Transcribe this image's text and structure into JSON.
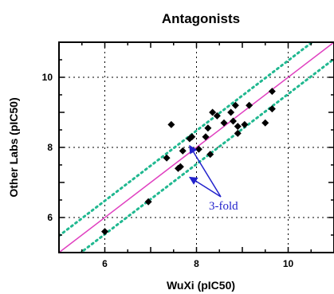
{
  "chart_data": {
    "type": "scatter",
    "title": "Antagonists",
    "xlabel": "WuXi (pIC50)",
    "ylabel": "Other Labs (pIC50)",
    "xlim": [
      5,
      11
    ],
    "ylim": [
      5,
      11
    ],
    "xticks": [
      6,
      8,
      10
    ],
    "yticks": [
      6,
      8,
      10
    ],
    "grid": true,
    "colors": {
      "points": "#000000",
      "identity_line": "#e040c0",
      "fold_lines": "#20b890",
      "annotation": "#2222cc"
    },
    "series": [
      {
        "x": [
          6.0,
          6.95,
          7.35,
          7.45,
          7.6,
          7.65,
          7.7,
          7.85,
          7.9,
          8.05,
          8.2,
          8.25,
          8.3,
          8.35,
          8.45,
          8.6,
          8.75,
          8.8,
          8.85,
          8.9,
          8.9,
          9.05,
          9.15,
          9.5,
          9.65,
          9.65
        ],
        "y": [
          5.6,
          6.45,
          7.7,
          8.65,
          7.4,
          7.45,
          7.9,
          8.25,
          8.3,
          7.95,
          8.3,
          8.55,
          7.8,
          9.0,
          8.9,
          8.7,
          9.0,
          8.75,
          9.2,
          8.4,
          8.6,
          8.65,
          9.2,
          8.7,
          9.6,
          9.1
        ]
      }
    ],
    "lines": [
      {
        "kind": "identity",
        "offset": 0
      },
      {
        "kind": "fold",
        "offset": 0.477
      },
      {
        "kind": "fold",
        "offset": -0.477
      }
    ],
    "annotation": {
      "text": "3-fold",
      "targets": [
        [
          7.85,
          8.05
        ],
        [
          7.85,
          7.15
        ]
      ]
    }
  }
}
